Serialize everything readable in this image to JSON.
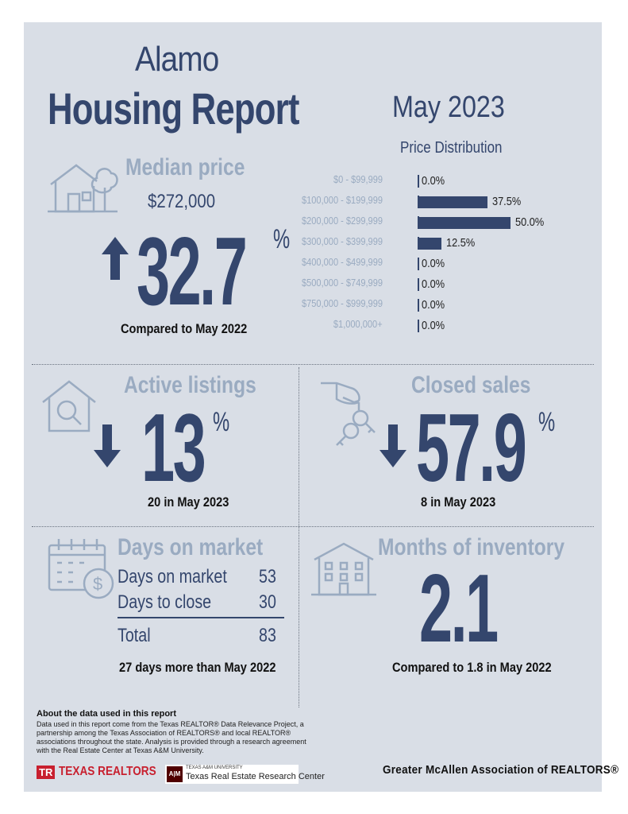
{
  "header": {
    "city": "Alamo",
    "title": "Housing Report",
    "month": "May 2023"
  },
  "median_price": {
    "label": "Median price",
    "value": "$272,000",
    "change": "32.7",
    "pct_sign": "%",
    "direction": "up",
    "caption": "Compared to May 2022",
    "icon": "house-with-tree-icon"
  },
  "price_distribution": {
    "title": "Price Distribution",
    "chart_data": {
      "type": "bar",
      "categories": [
        "$0 - $99,999",
        "$100,000 - $199,999",
        "$200,000 - $299,999",
        "$300,000 - $399,999",
        "$400,000 - $499,999",
        "$500,000 - $749,999",
        "$750,000 - $999,999",
        "$1,000,000+"
      ],
      "values": [
        0.0,
        37.5,
        50.0,
        12.5,
        0.0,
        0.0,
        0.0,
        0.0
      ],
      "value_labels": [
        "0.0%",
        "37.5%",
        "50.0%",
        "12.5%",
        "0.0%",
        "0.0%",
        "0.0%",
        "0.0%"
      ],
      "orientation": "horizontal",
      "xlim": [
        0,
        50
      ]
    }
  },
  "active_listings": {
    "label": "Active listings",
    "change": "13",
    "pct_sign": "%",
    "direction": "down",
    "caption": "20 in May 2023",
    "icon": "house-magnifier-icon"
  },
  "closed_sales": {
    "label": "Closed sales",
    "change": "57.9",
    "pct_sign": "%",
    "direction": "down",
    "caption": "8 in May 2023",
    "icon": "hand-keys-icon"
  },
  "days_on_market": {
    "label": "Days on market",
    "rows": [
      {
        "label": "Days on market",
        "value": "53"
      },
      {
        "label": "Days to close",
        "value": "30"
      }
    ],
    "total_label": "Total",
    "total_value": "83",
    "caption": "27 days more than May 2022",
    "icon": "calendar-dollar-icon"
  },
  "months_inventory": {
    "label": "Months of inventory",
    "value": "2.1",
    "caption": "Compared to 1.8 in May 2022",
    "icon": "apartment-building-icon"
  },
  "about": {
    "title": "About the data used in this report",
    "text": "Data used in this report come from the Texas REALTOR® Data Relevance Project, a partnership among the Texas Association of REALTORS® and local REALTOR® associations throughout the state. Analysis is provided through a research agreement with the Real Estate Center at Texas A&M University."
  },
  "footer": {
    "texas_realtors_mark": "TR",
    "texas_realtors": "TEXAS REALTORS",
    "tamu_mark": "A|M",
    "tamu_small": "TEXAS A&M UNIVERSITY",
    "tamu_center": "Texas Real Estate Research Center",
    "association": "Greater McAllen Association of REALTORS®"
  },
  "colors": {
    "background": "#d9dee6",
    "navy": "#34466d",
    "light_blue": "#9aabc1",
    "brand_red": "#c8202f",
    "tamu_maroon": "#500000"
  }
}
